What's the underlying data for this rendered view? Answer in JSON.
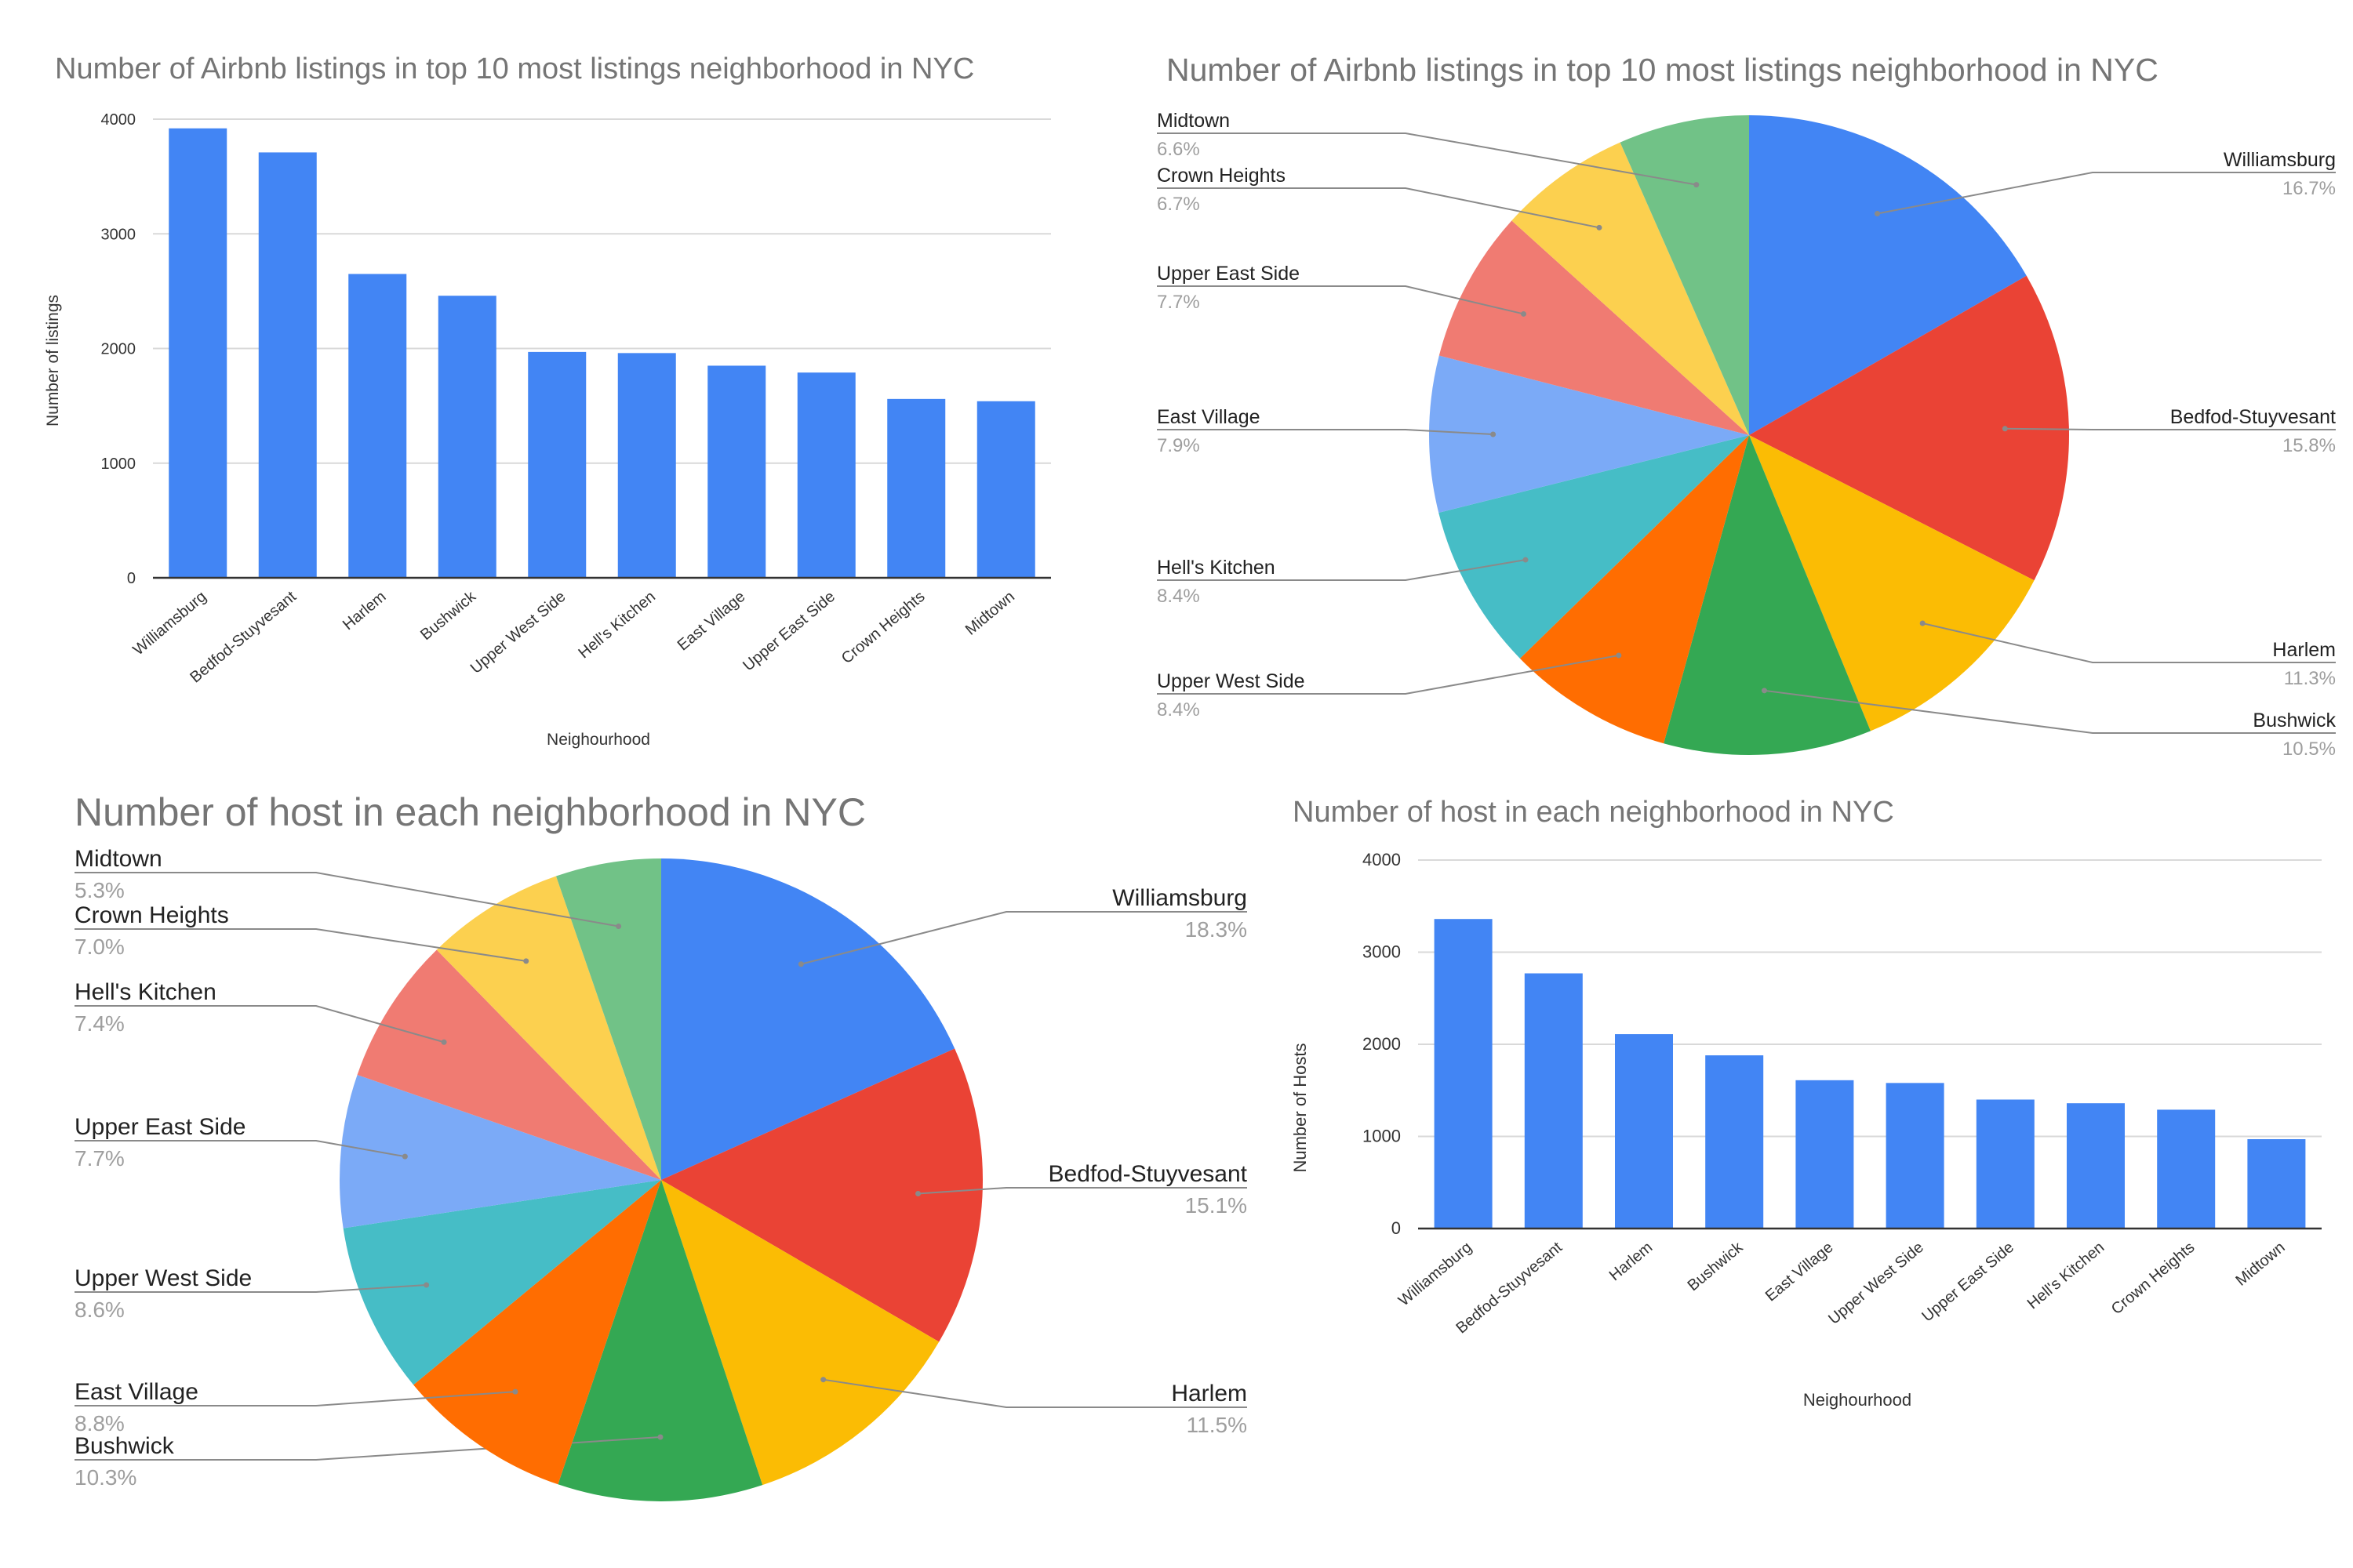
{
  "colors": {
    "bar": "#4285F4",
    "grid": "#D9D9D9",
    "axis": "#333333",
    "title": "#757575",
    "label": "#222222",
    "subtle": "#9E9E9E",
    "leader": "#8A8A8A"
  },
  "chart_data": [
    {
      "type": "bar",
      "title": "Number of Airbnb listings in top 10 most listings neighborhood in NYC",
      "xlabel": "Neighourhood",
      "ylabel": "Number of listings",
      "categories": [
        "Williamsburg",
        "Bedfod-Stuyvesant",
        "Harlem",
        "Bushwick",
        "Upper West Side",
        "Hell's Kitchen",
        "East Village",
        "Upper East Side",
        "Crown Heights",
        "Midtown"
      ],
      "values": [
        3920,
        3710,
        2650,
        2460,
        1970,
        1960,
        1850,
        1790,
        1560,
        1540
      ],
      "ylim": [
        0,
        4000
      ],
      "yticks": [
        "0",
        "1000",
        "2000",
        "3000",
        "4000"
      ],
      "grid": true,
      "legend": "none"
    },
    {
      "type": "pie",
      "title": "Number of Airbnb listings in top 10 most listings neighborhood in NYC",
      "slices": [
        {
          "label": "Williamsburg",
          "pct": "16.7%",
          "value": 16.7,
          "color": "#4285F4",
          "side": "right"
        },
        {
          "label": "Bedfod-Stuyvesant",
          "pct": "15.8%",
          "value": 15.8,
          "color": "#EA4335",
          "side": "right"
        },
        {
          "label": "Harlem",
          "pct": "11.3%",
          "value": 11.3,
          "color": "#FBBC04",
          "side": "right"
        },
        {
          "label": "Bushwick",
          "pct": "10.5%",
          "value": 10.5,
          "color": "#34A853",
          "side": "right"
        },
        {
          "label": "Upper West Side",
          "pct": "8.4%",
          "value": 8.4,
          "color": "#FF6D01",
          "side": "left"
        },
        {
          "label": "Hell's Kitchen",
          "pct": "8.4%",
          "value": 8.4,
          "color": "#46BDC6",
          "side": "left"
        },
        {
          "label": "East Village",
          "pct": "7.9%",
          "value": 7.9,
          "color": "#7BAAF7",
          "side": "left"
        },
        {
          "label": "Upper East Side",
          "pct": "7.7%",
          "value": 7.7,
          "color": "#F07B72",
          "side": "left"
        },
        {
          "label": "Crown Heights",
          "pct": "6.7%",
          "value": 6.7,
          "color": "#FCD04F",
          "side": "left"
        },
        {
          "label": "Midtown",
          "pct": "6.6%",
          "value": 6.6,
          "color": "#71C287",
          "side": "left"
        }
      ],
      "legend": "labels around pie"
    },
    {
      "type": "pie",
      "title": "Number of host in each neighborhood in NYC",
      "slices": [
        {
          "label": "Williamsburg",
          "pct": "18.3%",
          "value": 18.3,
          "color": "#4285F4",
          "side": "right"
        },
        {
          "label": "Bedfod-Stuyvesant",
          "pct": "15.1%",
          "value": 15.1,
          "color": "#EA4335",
          "side": "right"
        },
        {
          "label": "Harlem",
          "pct": "11.5%",
          "value": 11.5,
          "color": "#FBBC04",
          "side": "right"
        },
        {
          "label": "Bushwick",
          "pct": "10.3%",
          "value": 10.3,
          "color": "#34A853",
          "side": "left"
        },
        {
          "label": "East Village",
          "pct": "8.8%",
          "value": 8.8,
          "color": "#FF6D01",
          "side": "left"
        },
        {
          "label": "Upper West Side",
          "pct": "8.6%",
          "value": 8.6,
          "color": "#46BDC6",
          "side": "left"
        },
        {
          "label": "Upper East Side",
          "pct": "7.7%",
          "value": 7.7,
          "color": "#7BAAF7",
          "side": "left"
        },
        {
          "label": "Hell's Kitchen",
          "pct": "7.4%",
          "value": 7.4,
          "color": "#F07B72",
          "side": "left"
        },
        {
          "label": "Crown Heights",
          "pct": "7.0%",
          "value": 7.0,
          "color": "#FCD04F",
          "side": "left"
        },
        {
          "label": "Midtown",
          "pct": "5.3%",
          "value": 5.3,
          "color": "#71C287",
          "side": "left"
        }
      ],
      "legend": "labels around pie"
    },
    {
      "type": "bar",
      "title": "Number of host in each neighborhood in NYC",
      "xlabel": "Neighourhood",
      "ylabel": "Number of Hosts",
      "categories": [
        "Williamsburg",
        "Bedfod-Stuyvesant",
        "Harlem",
        "Bushwick",
        "East Village",
        "Upper West Side",
        "Upper East Side",
        "Hell's Kitchen",
        "Crown Heights",
        "Midtown"
      ],
      "values": [
        3360,
        2770,
        2110,
        1880,
        1610,
        1580,
        1400,
        1360,
        1290,
        970
      ],
      "ylim": [
        0,
        4000
      ],
      "yticks": [
        "0",
        "1000",
        "2000",
        "3000",
        "4000"
      ],
      "grid": true,
      "legend": "none"
    }
  ]
}
